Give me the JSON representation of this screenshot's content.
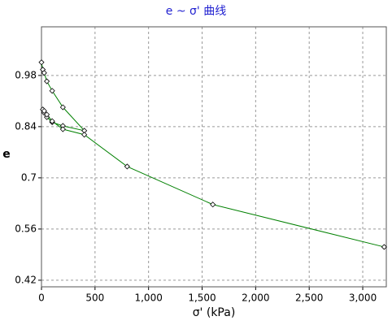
{
  "chart_data": {
    "type": "line",
    "title": "e ~ σ' 曲线",
    "x_label": "σ' (kPa)",
    "y_label": "e",
    "xlim": [
      0,
      3220
    ],
    "ylim": [
      0.402,
      1.113
    ],
    "xticks": [
      0,
      500,
      {
        "value": 1000,
        "label": "1,000"
      },
      {
        "value": 1500,
        "label": "1,500"
      },
      {
        "value": 2000,
        "label": "2,000"
      },
      {
        "value": 2500,
        "label": "2,500"
      },
      {
        "value": 3000,
        "label": "3,000"
      }
    ],
    "yticks": [
      0.42,
      0.56,
      0.7,
      0.84,
      0.98
    ],
    "grid": true,
    "series": [
      {
        "color": "#008000",
        "x": [
          0,
          12.5,
          25,
          50,
          100,
          200,
          400,
          200,
          100,
          50,
          25,
          12.5,
          25,
          50,
          100,
          200,
          400,
          800,
          1600,
          3200
        ],
        "values": [
          1.016,
          0.996,
          0.987,
          0.964,
          0.938,
          0.893,
          0.829,
          0.842,
          0.852,
          0.866,
          0.878,
          0.887,
          0.883,
          0.873,
          0.855,
          0.833,
          0.818,
          0.731,
          0.627,
          0.511
        ]
      }
    ]
  }
}
